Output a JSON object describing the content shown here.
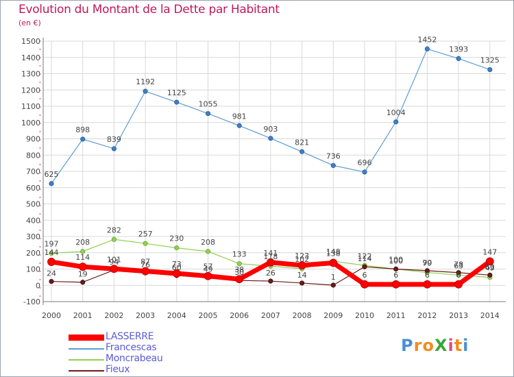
{
  "title": "Evolution du Montant de la Dette par Habitant",
  "subtitle": "(en €)",
  "logo": {
    "text": "ProXiti",
    "letters": [
      "P",
      "r",
      "o",
      "X",
      "i",
      "t",
      "i"
    ],
    "colors": [
      "#4a8fd4",
      "#f28c1e",
      "#f28c1e",
      "#3aa63a",
      "#e54b7a",
      "#f28c1e",
      "#4a8fd4"
    ]
  },
  "chart_data": {
    "type": "line",
    "categories": [
      "2000",
      "2001",
      "2002",
      "2003",
      "2004",
      "2005",
      "2006",
      "2007",
      "2008",
      "2009",
      "2010",
      "2011",
      "2012",
      "2013",
      "2014"
    ],
    "ylim": [
      -100,
      1500
    ],
    "yticks": [
      "-100",
      "0",
      "100",
      "200",
      "300",
      "400",
      "500",
      "600",
      "700",
      "800",
      "900",
      "1000",
      "1100",
      "1200",
      "1300",
      "1400",
      "1500"
    ],
    "grid": true,
    "legend_position": "bottom-left",
    "series": [
      {
        "name": "Francescas",
        "color": "#5b9bd5",
        "values": [
          625,
          898,
          839,
          1192,
          1125,
          1055,
          981,
          903,
          821,
          736,
          696,
          1004,
          1452,
          1393,
          1325
        ]
      },
      {
        "name": "Moncrabeau",
        "color": "#8fd14f",
        "values": [
          197,
          208,
          282,
          257,
          230,
          208,
          133,
          118,
          102,
          148,
          122,
          100,
          79,
          63,
          49
        ]
      },
      {
        "name": "Fieux",
        "color": "#6b1a1a",
        "values": [
          24,
          19,
          94,
          76,
          60,
          49,
          30,
          26,
          14,
          1,
          114,
          100,
          90,
          78,
          63
        ]
      },
      {
        "name": "LASSERRE",
        "color": "#ff0000",
        "values": [
          144,
          114,
          101,
          87,
          73,
          57,
          38,
          141,
          123,
          138,
          6,
          6,
          6,
          6,
          147
        ]
      }
    ],
    "data_labels": [
      [
        "625",
        "898",
        "839",
        "1192",
        "1125",
        "1055",
        "981",
        "903",
        "821",
        "736",
        "696",
        "1004",
        "1452",
        "1393",
        "1325"
      ],
      [
        "197",
        "208",
        "282",
        "257",
        "230",
        "208",
        "133",
        "118",
        "102",
        "148",
        "122",
        "100",
        "79",
        "63",
        "49"
      ],
      [
        "24",
        "19",
        "94",
        "76",
        "60",
        "49",
        "30",
        "26",
        "14",
        "1",
        "114",
        "100",
        "90",
        "78",
        "63"
      ],
      [
        "144",
        "114",
        "101",
        "87",
        "73",
        "57",
        "38",
        "141",
        "123",
        "138",
        "6",
        "6",
        "6",
        "6",
        "147"
      ]
    ]
  }
}
